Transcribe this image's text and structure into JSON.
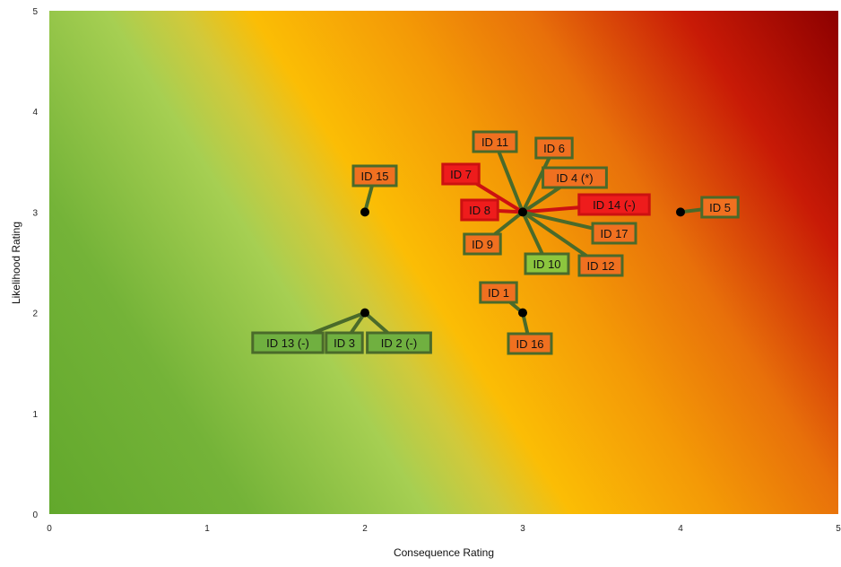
{
  "chart_data": {
    "type": "scatter",
    "title": "",
    "xlabel": "Consequence Rating",
    "ylabel": "Likelihood Rating",
    "xlim": [
      0,
      5
    ],
    "ylim": [
      0,
      5
    ],
    "x_ticks": [
      "0",
      "1",
      "2",
      "3",
      "4",
      "5"
    ],
    "y_ticks": [
      "0",
      "1",
      "2",
      "3",
      "4",
      "5"
    ],
    "background": "risk heatmap gradient (green bottom-left to dark red top-right)",
    "grid": false,
    "legend": "none",
    "points": [
      {
        "x": 2,
        "y": 3
      },
      {
        "x": 2,
        "y": 2
      },
      {
        "x": 3,
        "y": 3
      },
      {
        "x": 3,
        "y": 2
      },
      {
        "x": 4,
        "y": 3
      }
    ],
    "labels": [
      {
        "text": "ID 15",
        "x": 2,
        "y": 3,
        "color": "#f07020"
      },
      {
        "text": "ID 13 (-)",
        "x": 2,
        "y": 2,
        "color": "#70b040"
      },
      {
        "text": "ID 3",
        "x": 2,
        "y": 2,
        "color": "#70b040"
      },
      {
        "text": "ID 2 (-)",
        "x": 2,
        "y": 2,
        "color": "#70b040"
      },
      {
        "text": "ID 11",
        "x": 3,
        "y": 3,
        "color": "#f07020"
      },
      {
        "text": "ID 6",
        "x": 3,
        "y": 3,
        "color": "#f07020"
      },
      {
        "text": "ID 7",
        "x": 3,
        "y": 3,
        "color": "#ee1c1c"
      },
      {
        "text": "ID 4 (*)",
        "x": 3,
        "y": 3,
        "color": "#f07020"
      },
      {
        "text": "ID 8",
        "x": 3,
        "y": 3,
        "color": "#ee1c1c"
      },
      {
        "text": "ID 14 (-)",
        "x": 3,
        "y": 3,
        "color": "#ee1c1c"
      },
      {
        "text": "ID 9",
        "x": 3,
        "y": 3,
        "color": "#f07020"
      },
      {
        "text": "ID 17",
        "x": 3,
        "y": 3,
        "color": "#f07020"
      },
      {
        "text": "ID 10",
        "x": 3,
        "y": 3,
        "color": "#8cc63e"
      },
      {
        "text": "ID 12",
        "x": 3,
        "y": 3,
        "color": "#f07020"
      },
      {
        "text": "ID 1",
        "x": 3,
        "y": 2,
        "color": "#f07020"
      },
      {
        "text": "ID 16",
        "x": 3,
        "y": 2,
        "color": "#f07020"
      },
      {
        "text": "ID 5",
        "x": 4,
        "y": 3,
        "color": "#f07020"
      }
    ],
    "colors": {
      "border_default": "#4a6a2a",
      "border_red": "#cc1111",
      "marker": "#000000"
    }
  }
}
